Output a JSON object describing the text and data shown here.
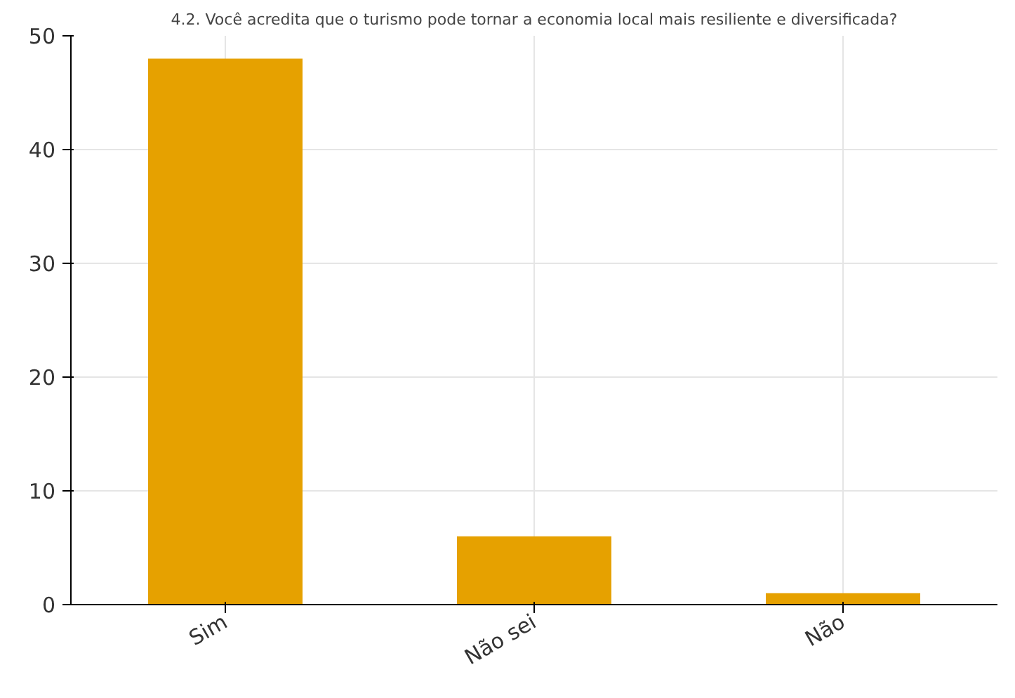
{
  "chart_data": {
    "type": "bar",
    "title": "4.2. Você acredita que o turismo pode tornar a economia local mais resiliente e diversificada?",
    "categories": [
      "Sim",
      "Não sei",
      "Não"
    ],
    "values": [
      48,
      6,
      1
    ],
    "color": "#e6a100",
    "ylim": [
      0,
      50
    ],
    "yticks": [
      0,
      10,
      20,
      30,
      40,
      50
    ],
    "grid": true
  }
}
